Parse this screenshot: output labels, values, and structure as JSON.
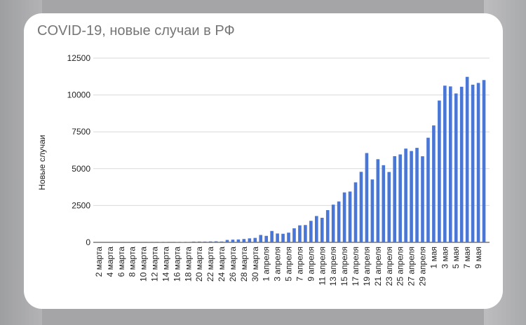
{
  "chart_data": {
    "type": "bar",
    "title": "COVID-19, новые случаи в РФ",
    "xlabel": "",
    "ylabel": "Новые случаи",
    "ylim": [
      0,
      12500
    ],
    "yticks": [
      "0",
      "2500",
      "5000",
      "7500",
      "10000",
      "12500"
    ],
    "ytick_values": [
      0,
      2500,
      5000,
      7500,
      10000,
      12500
    ],
    "grid": true,
    "bar_color": "#4a76d6",
    "categories": [
      "2 марта",
      "3 марта",
      "4 марта",
      "5 марта",
      "6 марта",
      "7 марта",
      "8 марта",
      "9 марта",
      "10 марта",
      "11 марта",
      "12 марта",
      "13 марта",
      "14 марта",
      "15 марта",
      "16 марта",
      "17 марта",
      "18 марта",
      "19 марта",
      "20 марта",
      "21 марта",
      "22 марта",
      "23 марта",
      "24 марта",
      "25 марта",
      "26 марта",
      "27 марта",
      "28 марта",
      "29 марта",
      "30 марта",
      "31 марта",
      "1 апреля",
      "2 апреля",
      "3 апреля",
      "4 апреля",
      "5 апреля",
      "6 апреля",
      "7 апреля",
      "8 апреля",
      "9 апреля",
      "10 апреля",
      "11 апреля",
      "12 апреля",
      "13 апреля",
      "14 апреля",
      "15 апреля",
      "16 апреля",
      "17 апреля",
      "18 апреля",
      "19 апреля",
      "20 апреля",
      "21 апреля",
      "22 апреля",
      "23 апреля",
      "24 апреля",
      "25 апреля",
      "26 апреля",
      "27 апреля",
      "28 апреля",
      "29 апреля",
      "30 апреля",
      "1 мая",
      "2 мая",
      "3 мая",
      "4 мая",
      "5 мая",
      "6 мая",
      "7 мая",
      "8 мая",
      "9 мая",
      "10 мая"
    ],
    "tick_labels": [
      "2 марта",
      "4 марта",
      "6 марта",
      "8 марта",
      "10 марта",
      "12 марта",
      "14 марта",
      "16 марта",
      "18 марта",
      "20 марта",
      "22 марта",
      "24 марта",
      "26 марта",
      "28 марта",
      "30 марта",
      "1 апреля",
      "3 апреля",
      "5 апреля",
      "7 апреля",
      "9 апреля",
      "11 апреля",
      "13 апреля",
      "15 апреля",
      "17 апреля",
      "19 апреля",
      "21 апреля",
      "23 апреля",
      "25 апреля",
      "27 апреля",
      "29 апреля",
      "1 мая",
      "3 мая",
      "5 мая",
      "7 мая",
      "9 мая"
    ],
    "values": [
      0,
      0,
      1,
      0,
      0,
      4,
      3,
      0,
      3,
      8,
      6,
      14,
      11,
      4,
      29,
      20,
      30,
      52,
      54,
      53,
      62,
      71,
      57,
      163,
      182,
      196,
      228,
      270,
      302,
      501,
      440,
      771,
      601,
      582,
      658,
      954,
      1154,
      1175,
      1459,
      1786,
      1667,
      2186,
      2558,
      2774,
      3388,
      3448,
      4070,
      4785,
      6060,
      4268,
      5642,
      5236,
      4774,
      5849,
      5966,
      6361,
      6198,
      6411,
      5841,
      7099,
      7933,
      9623,
      10633,
      10581,
      10102,
      10559,
      11231,
      10699,
      10817,
      11012
    ]
  }
}
